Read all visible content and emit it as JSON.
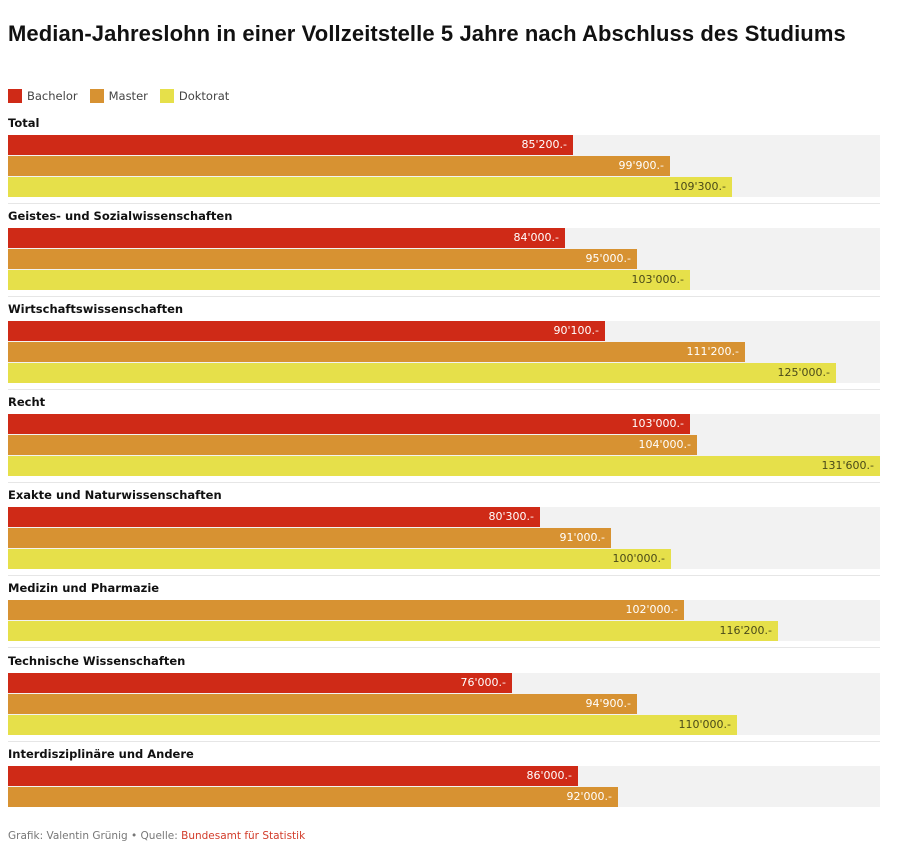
{
  "chart_data": {
    "type": "bar",
    "orientation": "horizontal",
    "title": "Median-Jahreslohn in einer Vollzeitstelle 5 Jahre nach Abschluss des Studiums",
    "xlabel": "",
    "ylabel": "",
    "xlim": [
      0,
      131600
    ],
    "grid": false,
    "legend_position": "top-left",
    "series_names": [
      "Bachelor",
      "Master",
      "Doktorat"
    ],
    "colors": {
      "Bachelor": "#cf2a17",
      "Master": "#d79232",
      "Doktorat": "#e6e04a"
    },
    "label_colors": {
      "Bachelor": "#ffffff",
      "Master": "#ffffff",
      "Doktorat": "#4a4a1a"
    },
    "categories": [
      "Total",
      "Geistes- und Sozialwissenschaften",
      "Wirtschaftswissenschaften",
      "Recht",
      "Exakte und Naturwissenschaften",
      "Medizin und Pharmazie",
      "Technische Wissenschaften",
      "Interdisziplinäre und Andere"
    ],
    "groups": [
      {
        "category": "Total",
        "bars": [
          {
            "series": "Bachelor",
            "value": 85200,
            "label": "85'200.-"
          },
          {
            "series": "Master",
            "value": 99900,
            "label": "99'900.-"
          },
          {
            "series": "Doktorat",
            "value": 109300,
            "label": "109'300.-"
          }
        ]
      },
      {
        "category": "Geistes- und Sozialwissenschaften",
        "bars": [
          {
            "series": "Bachelor",
            "value": 84000,
            "label": "84'000.-"
          },
          {
            "series": "Master",
            "value": 95000,
            "label": "95'000.-"
          },
          {
            "series": "Doktorat",
            "value": 103000,
            "label": "103'000.-"
          }
        ]
      },
      {
        "category": "Wirtschaftswissenschaften",
        "bars": [
          {
            "series": "Bachelor",
            "value": 90100,
            "label": "90'100.-"
          },
          {
            "series": "Master",
            "value": 111200,
            "label": "111'200.-"
          },
          {
            "series": "Doktorat",
            "value": 125000,
            "label": "125'000.-"
          }
        ]
      },
      {
        "category": "Recht",
        "bars": [
          {
            "series": "Bachelor",
            "value": 103000,
            "label": "103'000.-"
          },
          {
            "series": "Master",
            "value": 104000,
            "label": "104'000.-"
          },
          {
            "series": "Doktorat",
            "value": 131600,
            "label": "131'600.-"
          }
        ]
      },
      {
        "category": "Exakte und Naturwissenschaften",
        "bars": [
          {
            "series": "Bachelor",
            "value": 80300,
            "label": "80'300.-"
          },
          {
            "series": "Master",
            "value": 91000,
            "label": "91'000.-"
          },
          {
            "series": "Doktorat",
            "value": 100000,
            "label": "100'000.-"
          }
        ]
      },
      {
        "category": "Medizin und Pharmazie",
        "bars": [
          {
            "series": "Master",
            "value": 102000,
            "label": "102'000.-"
          },
          {
            "series": "Doktorat",
            "value": 116200,
            "label": "116'200.-"
          }
        ]
      },
      {
        "category": "Technische Wissenschaften",
        "bars": [
          {
            "series": "Bachelor",
            "value": 76000,
            "label": "76'000.-"
          },
          {
            "series": "Master",
            "value": 94900,
            "label": "94'900.-"
          },
          {
            "series": "Doktorat",
            "value": 110000,
            "label": "110'000.-"
          }
        ]
      },
      {
        "category": "Interdisziplinäre und Andere",
        "bars": [
          {
            "series": "Bachelor",
            "value": 86000,
            "label": "86'000.-"
          },
          {
            "series": "Master",
            "value": 92000,
            "label": "92'000.-"
          }
        ]
      }
    ]
  },
  "legend": [
    {
      "label": "Bachelor",
      "color": "#cf2a17"
    },
    {
      "label": "Master",
      "color": "#d79232"
    },
    {
      "label": "Doktorat",
      "color": "#e6e04a"
    }
  ],
  "footer": {
    "credit": "Grafik: Valentin Grünig",
    "separator": " • ",
    "source_prefix": "Quelle: ",
    "source_link": "Bundesamt für Statistik"
  }
}
